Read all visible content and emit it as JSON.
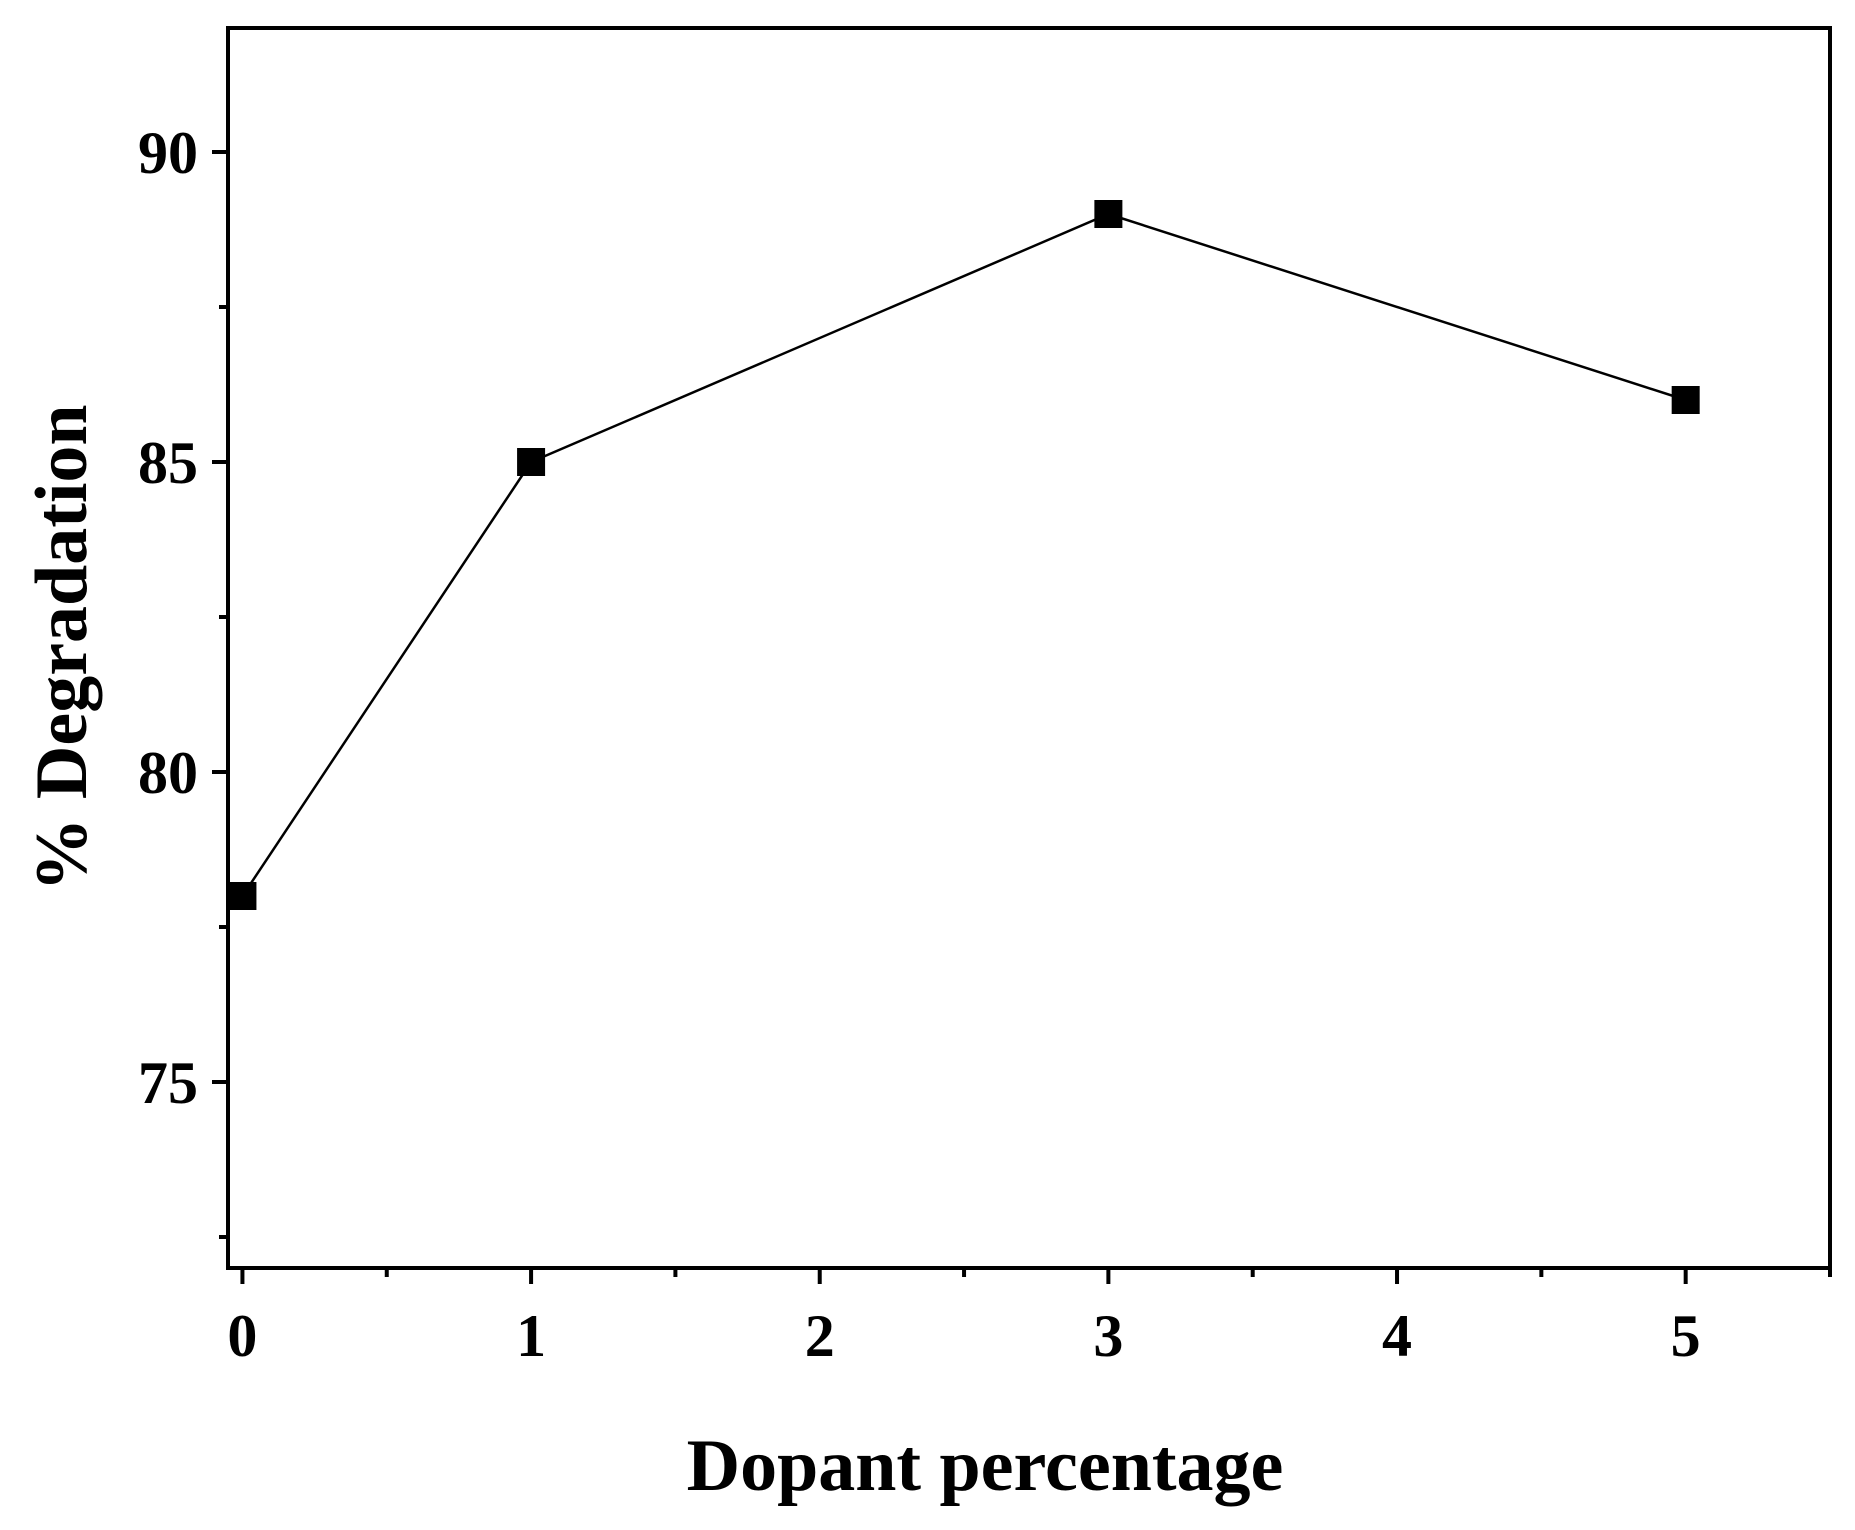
{
  "chart_data": {
    "type": "line",
    "title": "",
    "xlabel": "Dopant percentage",
    "ylabel": "% Degradation",
    "xlim": [
      -0.05,
      5.5
    ],
    "ylim": [
      72,
      92
    ],
    "xticks": [
      0,
      1,
      2,
      3,
      4,
      5
    ],
    "xtick_labels": [
      "0",
      "1",
      "2",
      "3",
      "4",
      "5"
    ],
    "xminor_ticks": [
      0.5,
      1.5,
      2.5,
      3.5,
      4.5,
      5.5
    ],
    "yticks": [
      75,
      80,
      85,
      90
    ],
    "ytick_labels": [
      "75",
      "80",
      "85",
      "90"
    ],
    "yminor_ticks": [
      72.5,
      77.5,
      82.5,
      87.5
    ],
    "grid": false,
    "legend": "none",
    "series": [
      {
        "x": [
          0,
          1,
          3,
          5
        ],
        "y": [
          78,
          85,
          89,
          86
        ],
        "marker": "square",
        "color": "#000000"
      }
    ]
  }
}
